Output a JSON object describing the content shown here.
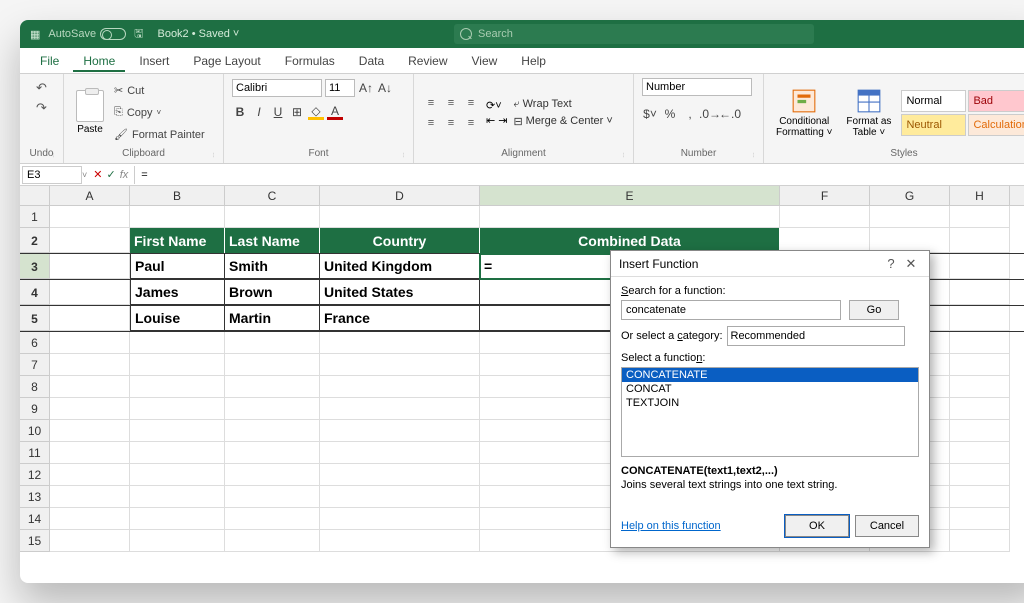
{
  "titleBar": {
    "autosave": "AutoSave",
    "docName": "Book2 • Saved ˅",
    "searchPlaceholder": "Search"
  },
  "menu": [
    "File",
    "Home",
    "Insert",
    "Page Layout",
    "Formulas",
    "Data",
    "Review",
    "View",
    "Help"
  ],
  "activeMenu": "Home",
  "ribbon": {
    "undo": "Undo",
    "clipboard": {
      "label": "Clipboard",
      "paste": "Paste",
      "cut": "Cut",
      "copy": "Copy",
      "fmtPainter": "Format Painter"
    },
    "font": {
      "label": "Font",
      "name": "Calibri",
      "size": "11"
    },
    "alignment": {
      "label": "Alignment",
      "wrap": "Wrap Text",
      "merge": "Merge & Center"
    },
    "number": {
      "label": "Number",
      "format": "Number"
    },
    "styles": {
      "label": "Styles",
      "cond": "Conditional\nFormatting ˅",
      "table": "Format as\nTable ˅",
      "normal": "Normal",
      "bad": "Bad",
      "neutral": "Neutral",
      "calc": "Calculation"
    }
  },
  "nameBox": "E3",
  "formulaBar": "=",
  "columns": [
    "A",
    "B",
    "C",
    "D",
    "E",
    "F",
    "G",
    "H"
  ],
  "rowNums": [
    1,
    2,
    3,
    4,
    5,
    6,
    7,
    8,
    9,
    10,
    11,
    12,
    13,
    14,
    15
  ],
  "activeCol": "E",
  "activeRow": 3,
  "table": {
    "headers": {
      "b": "First Name",
      "c": "Last Name",
      "d": "Country",
      "e": "Combined Data"
    },
    "rows": [
      {
        "b": "Paul",
        "c": "Smith",
        "d": "United Kingdom",
        "e": "="
      },
      {
        "b": "James",
        "c": "Brown",
        "d": "United States",
        "e": ""
      },
      {
        "b": "Louise",
        "c": "Martin",
        "d": "France",
        "e": ""
      }
    ]
  },
  "dialog": {
    "title": "Insert Function",
    "searchLabel": "Search for a function:",
    "searchValue": "concatenate",
    "go": "Go",
    "catLabel": "Or select a category:",
    "catValue": "Recommended",
    "selectLabel": "Select a function:",
    "functions": [
      "CONCATENATE",
      "CONCAT",
      "TEXTJOIN"
    ],
    "selected": "CONCATENATE",
    "sig": "CONCATENATE(text1,text2,...)",
    "desc": "Joins several text strings into one text string.",
    "help": "Help on this function",
    "ok": "OK",
    "cancel": "Cancel"
  },
  "colors": {
    "brand": "#1e6f43",
    "tableHeader": "#1e6f43"
  }
}
